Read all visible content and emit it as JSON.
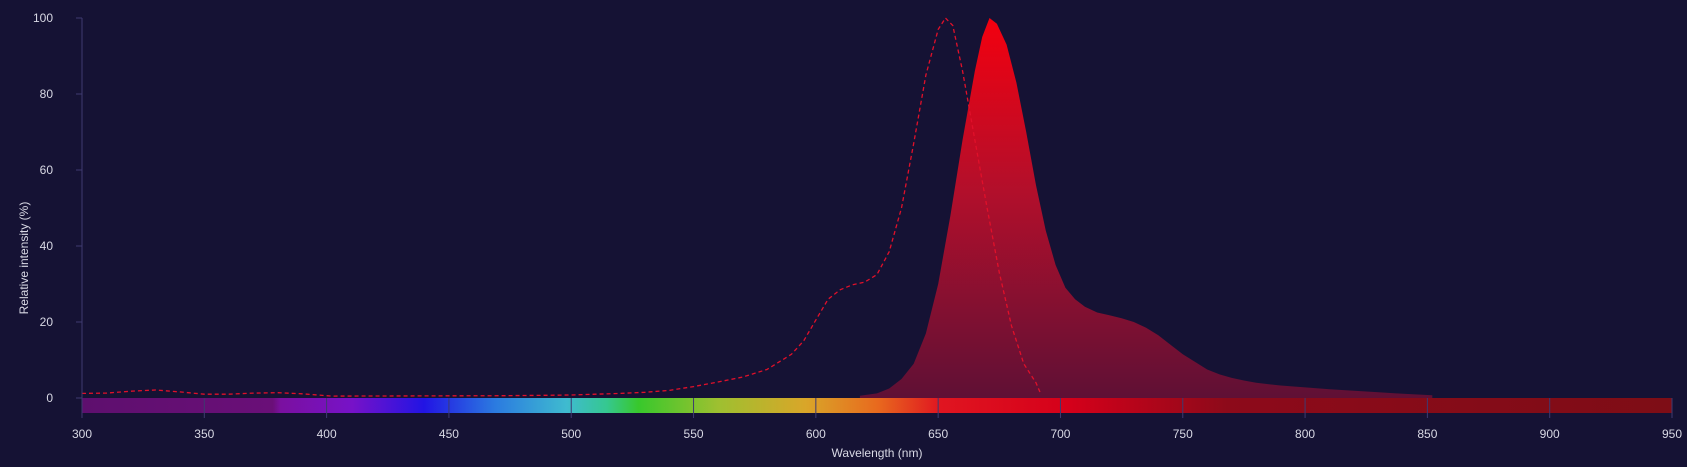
{
  "chart_data": {
    "type": "area",
    "title": "",
    "xlabel": "Wavelength (nm)",
    "ylabel": "Relative intensity (%)",
    "xlim": [
      300,
      950
    ],
    "ylim": [
      0,
      100
    ],
    "x_ticks": [
      "300",
      "350",
      "400",
      "450",
      "500",
      "550",
      "600",
      "650",
      "700",
      "750",
      "800",
      "850",
      "900",
      "950"
    ],
    "y_ticks": [
      "0",
      "20",
      "40",
      "60",
      "80",
      "100"
    ],
    "grid": false,
    "legend": "none",
    "series": [
      {
        "style": "dashed-line",
        "color": "#e0102a",
        "points": [
          [
            300,
            1.2
          ],
          [
            310,
            1.3
          ],
          [
            320,
            1.8
          ],
          [
            330,
            2.1
          ],
          [
            340,
            1.6
          ],
          [
            350,
            1.0
          ],
          [
            360,
            1.0
          ],
          [
            370,
            1.3
          ],
          [
            380,
            1.4
          ],
          [
            390,
            1.1
          ],
          [
            400,
            0.6
          ],
          [
            402,
            0.5
          ],
          [
            472,
            0.6
          ],
          [
            490,
            0.7
          ],
          [
            500,
            0.8
          ],
          [
            510,
            1.0
          ],
          [
            520,
            1.2
          ],
          [
            530,
            1.5
          ],
          [
            540,
            2.0
          ],
          [
            550,
            3.0
          ],
          [
            560,
            4.2
          ],
          [
            570,
            5.5
          ],
          [
            580,
            7.5
          ],
          [
            590,
            11.5
          ],
          [
            595,
            15
          ],
          [
            600,
            20.5
          ],
          [
            605,
            26
          ],
          [
            610,
            28.5
          ],
          [
            615,
            29.8
          ],
          [
            620,
            30.5
          ],
          [
            625,
            32.5
          ],
          [
            630,
            38.5
          ],
          [
            635,
            50
          ],
          [
            640,
            67
          ],
          [
            645,
            85
          ],
          [
            650,
            97
          ],
          [
            653,
            100
          ],
          [
            656,
            98
          ],
          [
            660,
            86
          ],
          [
            665,
            68
          ],
          [
            670,
            50
          ],
          [
            675,
            33
          ],
          [
            680,
            19
          ],
          [
            685,
            9
          ],
          [
            690,
            4
          ],
          [
            692,
            1
          ]
        ]
      },
      {
        "style": "filled-area",
        "color": "#e0102a",
        "points": [
          [
            618,
            0.6
          ],
          [
            625,
            1.2
          ],
          [
            630,
            2.5
          ],
          [
            635,
            5
          ],
          [
            640,
            9
          ],
          [
            645,
            17
          ],
          [
            650,
            30
          ],
          [
            655,
            48
          ],
          [
            660,
            68
          ],
          [
            665,
            86
          ],
          [
            668,
            95
          ],
          [
            671,
            100
          ],
          [
            674,
            98.5
          ],
          [
            678,
            93
          ],
          [
            682,
            83
          ],
          [
            686,
            70
          ],
          [
            690,
            56
          ],
          [
            694,
            44
          ],
          [
            698,
            35
          ],
          [
            702,
            29
          ],
          [
            706,
            26
          ],
          [
            710,
            24
          ],
          [
            715,
            22.5
          ],
          [
            720,
            21.8
          ],
          [
            725,
            21
          ],
          [
            730,
            20
          ],
          [
            735,
            18.5
          ],
          [
            740,
            16.5
          ],
          [
            745,
            14
          ],
          [
            750,
            11.5
          ],
          [
            755,
            9.5
          ],
          [
            760,
            7.5
          ],
          [
            765,
            6.2
          ],
          [
            770,
            5.3
          ],
          [
            775,
            4.6
          ],
          [
            780,
            4.0
          ],
          [
            790,
            3.3
          ],
          [
            800,
            2.8
          ],
          [
            810,
            2.3
          ],
          [
            820,
            1.9
          ],
          [
            830,
            1.5
          ],
          [
            840,
            1.1
          ],
          [
            850,
            0.8
          ],
          [
            852,
            0.7
          ]
        ]
      }
    ]
  }
}
